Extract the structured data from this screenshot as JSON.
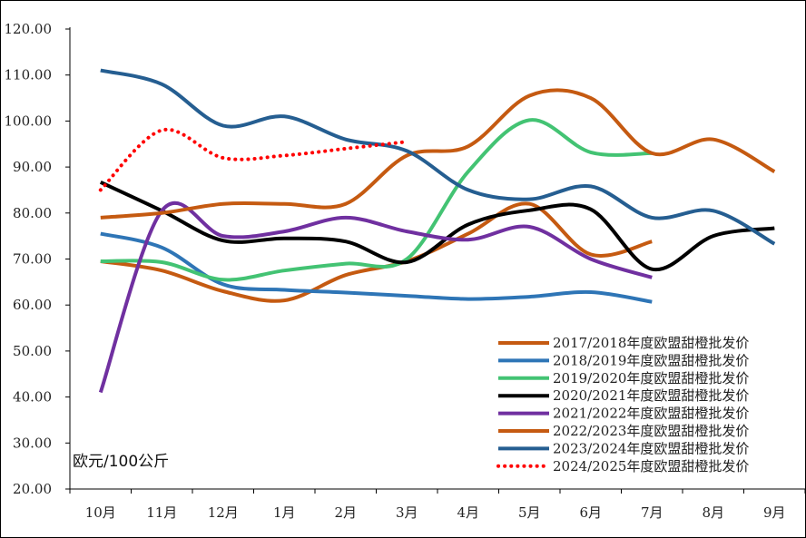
{
  "chart_data": {
    "type": "line",
    "title": "",
    "ylabel": "欧元/100公斤",
    "xlabel": "",
    "ylim": [
      20,
      120
    ],
    "yticks": [
      "20.00",
      "30.00",
      "40.00",
      "50.00",
      "60.00",
      "70.00",
      "80.00",
      "90.00",
      "100.00",
      "110.00",
      "120.00"
    ],
    "categories": [
      "10月",
      "11月",
      "12月",
      "1月",
      "2月",
      "3月",
      "4月",
      "5月",
      "6月",
      "7月",
      "8月",
      "9月"
    ],
    "series": [
      {
        "name": "2017/2018年度欧盟甜橙批发价",
        "color": "#C55A11",
        "dashed": false,
        "values": [
          69.5,
          67.5,
          63.0,
          61.0,
          66.5,
          69.5,
          75.5,
          82.0,
          71.0,
          73.8,
          null,
          null
        ]
      },
      {
        "name": "2018/2019年度欧盟甜橙批发价",
        "color": "#2E75B6",
        "dashed": false,
        "values": [
          75.5,
          72.5,
          64.5,
          63.3,
          62.7,
          62.0,
          61.3,
          61.8,
          62.8,
          60.7,
          null,
          null
        ]
      },
      {
        "name": "2019/2020年度欧盟甜橙批发价",
        "color": "#43C373",
        "dashed": false,
        "values": [
          69.5,
          69.3,
          65.5,
          67.5,
          69.0,
          70.0,
          89.0,
          100.2,
          93.2,
          93.0,
          null,
          null
        ]
      },
      {
        "name": "2020/2021年度欧盟甜橙批发价",
        "color": "#000000",
        "dashed": false,
        "values": [
          86.7,
          80.5,
          74.0,
          74.5,
          73.8,
          69.3,
          77.5,
          80.6,
          80.8,
          67.8,
          75.0,
          76.7
        ]
      },
      {
        "name": "2021/2022年度欧盟甜橙批发价",
        "color": "#7030A0",
        "dashed": false,
        "values": [
          41.0,
          80.5,
          75.0,
          76.0,
          79.0,
          76.0,
          74.2,
          77.0,
          70.0,
          66.0,
          null,
          null
        ]
      },
      {
        "name": "2022/2023年度欧盟甜橙批发价",
        "color": "#C55A11",
        "dashed": false,
        "values": [
          79.0,
          80.0,
          82.0,
          82.0,
          82.0,
          92.5,
          94.5,
          105.5,
          105.0,
          93.0,
          96.0,
          89.0
        ]
      },
      {
        "name": "2023/2024年度欧盟甜橙批发价",
        "color": "#255E91",
        "dashed": false,
        "values": [
          111.0,
          108.0,
          99.0,
          101.0,
          96.0,
          93.5,
          85.0,
          83.0,
          85.8,
          79.0,
          80.5,
          73.3
        ]
      },
      {
        "name": "2024/2025年度欧盟甜橙批发价",
        "color": "#FF0000",
        "dashed": true,
        "values": [
          85.0,
          98.0,
          92.0,
          92.5,
          94.0,
          95.5,
          null,
          null,
          null,
          null,
          null,
          null
        ]
      }
    ],
    "legend_position": "bottom-right",
    "grid": false
  }
}
